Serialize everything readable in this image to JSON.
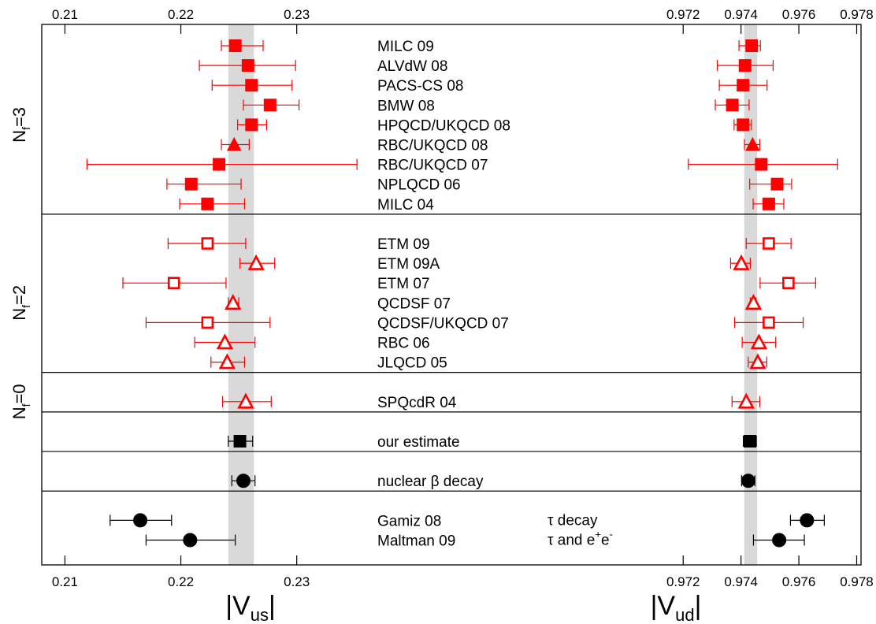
{
  "chart_data": {
    "type": "scatter",
    "plot_style": "forest-plot with horizontal error bars",
    "panels": [
      {
        "id": "vus",
        "axis_label": "|V",
        "axis_label_sub": "us",
        "axis_label_suffix": "|",
        "xlim": [
          0.208,
          0.2375
        ],
        "ticks": [
          0.21,
          0.22,
          0.23
        ],
        "tick_labels": [
          "0.21",
          "0.22",
          "0.23"
        ],
        "band": [
          0.2241,
          0.2263
        ]
      },
      {
        "id": "vud",
        "axis_label": "|V",
        "axis_label_sub": "ud",
        "axis_label_suffix": "|",
        "xlim": [
          0.9669,
          0.97815
        ],
        "ticks": [
          0.972,
          0.974,
          0.976,
          0.978
        ],
        "tick_labels": [
          "0.972",
          "0.974",
          "0.976",
          "0.978"
        ],
        "band": [
          0.97411,
          0.97456
        ]
      }
    ],
    "groups": [
      {
        "label": "N",
        "sub": "f",
        "suffix": "=3",
        "rows": [
          0,
          8
        ]
      },
      {
        "label": "N",
        "sub": "f",
        "suffix": "=2",
        "rows": [
          10,
          16
        ]
      },
      {
        "label": "N",
        "sub": "f",
        "suffix": "=0",
        "rows": [
          18,
          18
        ]
      }
    ],
    "separators_after_slot": [
      8.5,
      16.5,
      18.5,
      20.5,
      22.5
    ],
    "series": [
      {
        "name": "MILC 09",
        "slot": 0,
        "marker": "square",
        "fill": true,
        "color": "#ff0000",
        "vus": {
          "v": 0.2247,
          "lo": 0.2235,
          "hi": 0.2271
        },
        "vud": {
          "v": 0.97437,
          "lo": 0.97393,
          "hi": 0.97467
        }
      },
      {
        "name": "ALVdW 08",
        "slot": 1,
        "marker": "square",
        "fill": true,
        "color": "#ff0000",
        "vus": {
          "v": 0.2258,
          "lo": 0.2216,
          "hi": 0.2299
        },
        "vud": {
          "v": 0.97414,
          "lo": 0.97318,
          "hi": 0.97511
        }
      },
      {
        "name": "PACS-CS 08",
        "slot": 2,
        "marker": "square",
        "fill": true,
        "color": "#ff0000",
        "vus": {
          "v": 0.2261,
          "lo": 0.2227,
          "hi": 0.2296
        },
        "vud": {
          "v": 0.97407,
          "lo": 0.97325,
          "hi": 0.9749
        }
      },
      {
        "name": "BMW 08",
        "slot": 3,
        "marker": "square",
        "fill": true,
        "color": "#ff0000",
        "vus": {
          "v": 0.2277,
          "lo": 0.2254,
          "hi": 0.2302
        },
        "vud": {
          "v": 0.9737,
          "lo": 0.97311,
          "hi": 0.97428
        }
      },
      {
        "name": "HPQCD/UKQCD 08",
        "slot": 4,
        "marker": "square",
        "fill": true,
        "color": "#ff0000",
        "vus": {
          "v": 0.2261,
          "lo": 0.2249,
          "hi": 0.2274
        },
        "vud": {
          "v": 0.97407,
          "lo": 0.97376,
          "hi": 0.97436
        }
      },
      {
        "name": "RBC/UKQCD 08",
        "slot": 5,
        "marker": "triangle",
        "fill": true,
        "color": "#ff0000",
        "vus": {
          "v": 0.2246,
          "lo": 0.2235,
          "hi": 0.2259
        },
        "vud": {
          "v": 0.9744,
          "lo": 0.97412,
          "hi": 0.97465
        }
      },
      {
        "name": "RBC/UKQCD 07",
        "slot": 6,
        "marker": "square",
        "fill": true,
        "color": "#ff0000",
        "vus": {
          "v": 0.2233,
          "lo": 0.2119,
          "hi": 0.2352
        },
        "vud": {
          "v": 0.9747,
          "lo": 0.97218,
          "hi": 0.97734
        }
      },
      {
        "name": "NPLQCD 06",
        "slot": 7,
        "marker": "square",
        "fill": true,
        "color": "#ff0000",
        "vus": {
          "v": 0.2209,
          "lo": 0.2188,
          "hi": 0.2252
        },
        "vud": {
          "v": 0.97525,
          "lo": 0.9743,
          "hi": 0.97575
        }
      },
      {
        "name": "MILC 04",
        "slot": 8,
        "marker": "square",
        "fill": true,
        "color": "#ff0000",
        "vus": {
          "v": 0.2223,
          "lo": 0.2199,
          "hi": 0.2255
        },
        "vud": {
          "v": 0.97496,
          "lo": 0.97442,
          "hi": 0.97548
        }
      },
      {
        "name": "ETM 09",
        "slot": 10,
        "marker": "square",
        "fill": false,
        "color": "#ff0000",
        "vus": {
          "v": 0.2223,
          "lo": 0.2189,
          "hi": 0.2256
        },
        "vud": {
          "v": 0.97496,
          "lo": 0.97418,
          "hi": 0.97573
        }
      },
      {
        "name": "ETM 09A",
        "slot": 11,
        "marker": "triangle",
        "fill": false,
        "color": "#ff0000",
        "vus": {
          "v": 0.2265,
          "lo": 0.2251,
          "hi": 0.2281
        },
        "vud": {
          "v": 0.97401,
          "lo": 0.97364,
          "hi": 0.97432
        }
      },
      {
        "name": "ETM 07",
        "slot": 12,
        "marker": "square",
        "fill": false,
        "color": "#ff0000",
        "vus": {
          "v": 0.2194,
          "lo": 0.215,
          "hi": 0.2239
        },
        "vud": {
          "v": 0.97564,
          "lo": 0.97466,
          "hi": 0.97658
        }
      },
      {
        "name": "QCDSF 07",
        "slot": 13,
        "marker": "triangle",
        "fill": false,
        "color": "#ff0000",
        "vus": {
          "v": 0.2245,
          "lo": 0.2241,
          "hi": 0.225
        },
        "vud": {
          "v": 0.97443,
          "lo": 0.97432,
          "hi": 0.97452
        }
      },
      {
        "name": "QCDSF/UKQCD 07",
        "slot": 14,
        "marker": "square",
        "fill": false,
        "color": "#ff0000",
        "vus": {
          "v": 0.2223,
          "lo": 0.217,
          "hi": 0.2277
        },
        "vud": {
          "v": 0.97496,
          "lo": 0.97378,
          "hi": 0.97615
        }
      },
      {
        "name": "RBC 06",
        "slot": 15,
        "marker": "triangle",
        "fill": false,
        "color": "#ff0000",
        "vus": {
          "v": 0.2238,
          "lo": 0.2212,
          "hi": 0.2264
        },
        "vud": {
          "v": 0.97462,
          "lo": 0.97404,
          "hi": 0.9752
        }
      },
      {
        "name": "JLQCD 05",
        "slot": 16,
        "marker": "triangle",
        "fill": false,
        "color": "#ff0000",
        "vus": {
          "v": 0.224,
          "lo": 0.2226,
          "hi": 0.2255
        },
        "vud": {
          "v": 0.97458,
          "lo": 0.97425,
          "hi": 0.97489
        }
      },
      {
        "name": "SPQcdR 04",
        "slot": 18,
        "marker": "triangle",
        "fill": false,
        "color": "#ff0000",
        "vus": {
          "v": 0.2256,
          "lo": 0.2236,
          "hi": 0.2278
        },
        "vud": {
          "v": 0.97418,
          "lo": 0.97369,
          "hi": 0.97465
        }
      },
      {
        "name": "our estimate",
        "slot": 20,
        "marker": "square",
        "fill": true,
        "color": "#000000",
        "vus": {
          "v": 0.2251,
          "lo": 0.2241,
          "hi": 0.2262
        },
        "vud": {
          "v": 0.97431,
          "lo": 0.97408,
          "hi": 0.97453
        }
      },
      {
        "name": "nuclear β decay",
        "slot": 22,
        "marker": "circle",
        "fill": true,
        "color": "#000000",
        "vus": {
          "v": 0.2254,
          "lo": 0.2244,
          "hi": 0.2264
        },
        "vud": {
          "v": 0.97425,
          "lo": 0.97402,
          "hi": 0.97448
        }
      },
      {
        "name": "Gamiz 08",
        "slot": 24,
        "marker": "circle",
        "fill": true,
        "color": "#000000",
        "vus": {
          "v": 0.2165,
          "lo": 0.2139,
          "hi": 0.2192
        },
        "vud": {
          "v": 0.97628,
          "lo": 0.97571,
          "hi": 0.97688
        }
      },
      {
        "name": "Maltman 09",
        "slot": 25,
        "marker": "circle",
        "fill": true,
        "color": "#000000",
        "vus": {
          "v": 0.2208,
          "lo": 0.217,
          "hi": 0.2247
        },
        "vud": {
          "v": 0.97532,
          "lo": 0.97443,
          "hi": 0.97619
        }
      }
    ],
    "annotations": [
      {
        "text": "τ decay",
        "slot": 24
      },
      {
        "text": "τ and e",
        "sup1": "+",
        "mid": "e",
        "sup2": "-",
        "slot": 25
      }
    ],
    "band_color": "#d9d9d9",
    "grid": false
  }
}
